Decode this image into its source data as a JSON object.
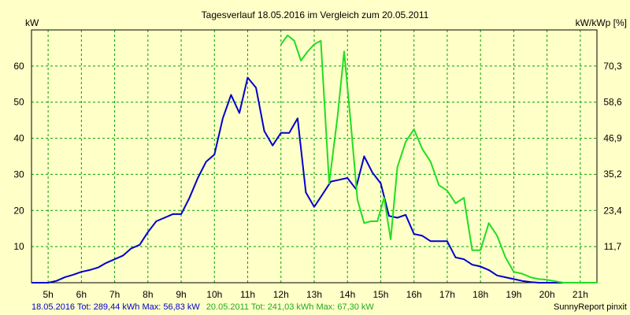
{
  "chart_data": {
    "type": "line",
    "title": "Tagesverlauf 18.05.2016 im Vergleich zum 20.05.2011",
    "ylabel_left": "kW",
    "ylabel_right": "kW/kWp [%]",
    "ylim": [
      0,
      70
    ],
    "ylim_right": [
      0,
      82
    ],
    "xlim": [
      4.5,
      21.5
    ],
    "grid": true,
    "x_ticks": [
      "5h",
      "6h",
      "7h",
      "8h",
      "9h",
      "10h",
      "11h",
      "12h",
      "13h",
      "14h",
      "15h",
      "16h",
      "17h",
      "18h",
      "19h",
      "20h",
      "21h"
    ],
    "y_ticks_left": [
      "10",
      "20",
      "30",
      "40",
      "50",
      "60"
    ],
    "y_ticks_right": [
      "11,7",
      "23,4",
      "35,2",
      "46,9",
      "58,6",
      "70,3"
    ],
    "series": [
      {
        "name": "18.05.2016",
        "color": "#0000cc",
        "x": [
          4.5,
          5.0,
          5.25,
          5.5,
          5.75,
          6.0,
          6.25,
          6.5,
          6.75,
          7.0,
          7.25,
          7.5,
          7.75,
          8.0,
          8.25,
          8.5,
          8.75,
          9.0,
          9.25,
          9.5,
          9.75,
          10.0,
          10.25,
          10.5,
          10.75,
          11.0,
          11.25,
          11.5,
          11.75,
          12.0,
          12.25,
          12.5,
          12.75,
          13.0,
          13.25,
          13.5,
          13.75,
          14.0,
          14.25,
          14.5,
          14.75,
          15.0,
          15.25,
          15.5,
          15.75,
          16.0,
          16.25,
          16.5,
          16.75,
          17.0,
          17.25,
          17.5,
          17.75,
          18.0,
          18.25,
          18.5,
          18.75,
          19.0,
          19.25,
          19.5,
          19.75,
          20.0,
          20.25,
          20.5
        ],
        "values": [
          0,
          0,
          0.5,
          1.5,
          2.2,
          3,
          3.5,
          4.2,
          5.5,
          6.5,
          7.5,
          9.5,
          10.5,
          14,
          17,
          18,
          19,
          19,
          23.5,
          29,
          33.5,
          35.5,
          45.5,
          52,
          47,
          56.8,
          54,
          42,
          38,
          41.5,
          41.5,
          45.5,
          25,
          21,
          24.5,
          28,
          28.5,
          29,
          26,
          35,
          30.5,
          27.5,
          18.5,
          18,
          18.8,
          13.5,
          13,
          11.5,
          11.5,
          11.5,
          7,
          6.5,
          5,
          4.5,
          3.5,
          2,
          1.5,
          1,
          0.5,
          0.2,
          0,
          0,
          0,
          0
        ]
      },
      {
        "name": "20.05.2011",
        "color": "#22dd22",
        "x": [
          12.0,
          12.2,
          12.4,
          12.6,
          12.8,
          13.0,
          13.2,
          13.45,
          13.7,
          13.9,
          14.1,
          14.3,
          14.5,
          14.7,
          14.9,
          15.1,
          15.3,
          15.5,
          15.75,
          16.0,
          16.25,
          16.5,
          16.75,
          17.0,
          17.25,
          17.5,
          17.75,
          18.0,
          18.25,
          18.5,
          18.75,
          19.0,
          19.25,
          19.5,
          19.75,
          20.0,
          20.5,
          21.0,
          21.5
        ],
        "values": [
          66,
          68.5,
          67,
          61.5,
          64,
          66,
          67,
          27.5,
          46,
          64,
          44,
          23,
          16.5,
          17,
          17,
          23.5,
          12,
          32,
          39,
          42.5,
          37,
          33.5,
          27,
          25.5,
          22,
          23.5,
          9,
          9,
          16.5,
          13,
          7,
          3,
          2.5,
          1.5,
          1,
          0.8,
          0,
          0,
          0
        ]
      }
    ],
    "footer_left_blue": "18.05.2016 Tot: 289,44 kWh Max: 56,83 kW",
    "footer_left_green": "20.05.2011 Tot: 241,03 kWh Max: 67,30 kW",
    "footer_right": "SunnyReport pinxit"
  }
}
